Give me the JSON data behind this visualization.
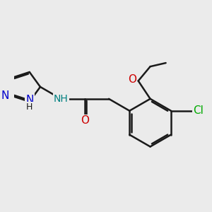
{
  "background_color": "#ebebeb",
  "bond_color": "#1a1a1a",
  "bond_width": 1.8,
  "atom_colors": {
    "N": "#0000cc",
    "O": "#cc0000",
    "Cl": "#00aa00",
    "NH_label": "#008080",
    "C": "#1a1a1a"
  },
  "font_size": 10,
  "fig_size": [
    3.0,
    3.0
  ],
  "dpi": 100
}
